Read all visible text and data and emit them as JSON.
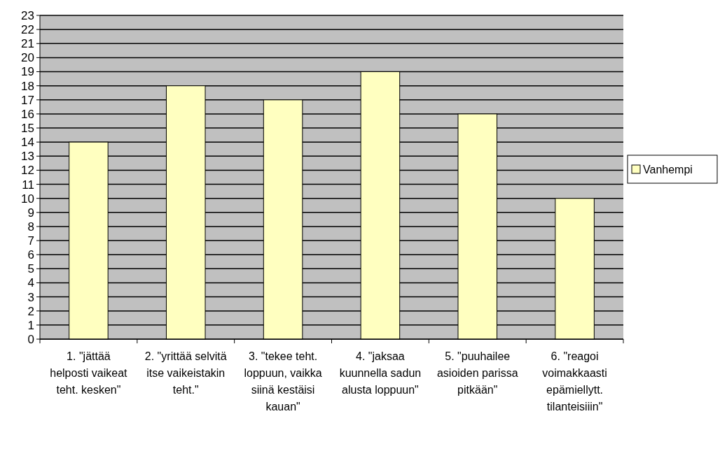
{
  "chart_data": {
    "type": "bar",
    "categories": [
      "1. \"jättää helposti vaikeat teht. kesken\"",
      "2. \"yrittää selvitä itse vaikeistakin teht.\"",
      "3. \"tekee teht. loppuun, vaikka siinä kestäisi kauan\"",
      "4. \"jaksaa kuunnella sadun alusta loppuun\"",
      "5. \"puuhailee asioiden parissa pitkään\"",
      "6. \"reagoi voimakkaasti epämiellytt. tilanteisiiin\""
    ],
    "series": [
      {
        "name": "Vanhempi",
        "color": "#ffffc0",
        "values": [
          14,
          18,
          17,
          19,
          16,
          10
        ]
      }
    ],
    "ylim": [
      0,
      23
    ],
    "yticks": [
      0,
      1,
      2,
      3,
      4,
      5,
      6,
      7,
      8,
      9,
      10,
      11,
      12,
      13,
      14,
      15,
      16,
      17,
      18,
      19,
      20,
      21,
      22,
      23
    ],
    "grid": "y",
    "legend": "right"
  }
}
